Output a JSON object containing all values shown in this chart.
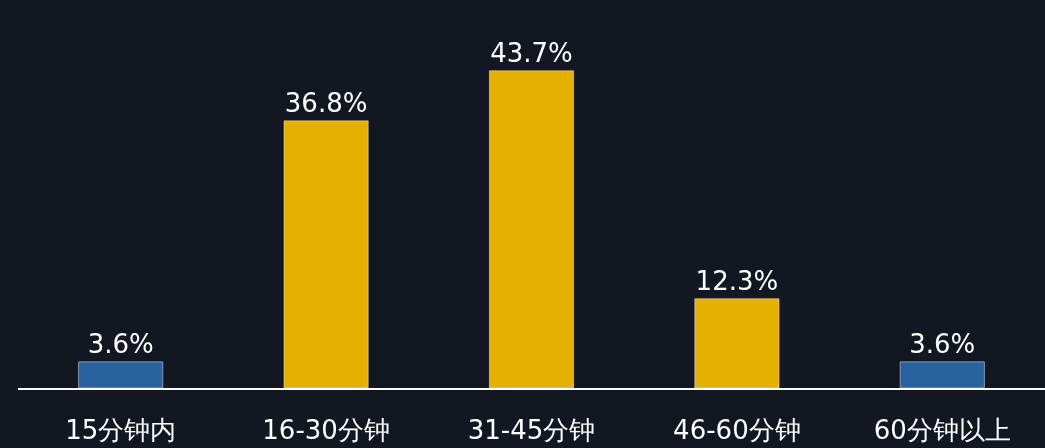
{
  "chart_data": {
    "type": "bar",
    "categories": [
      "15分钟内",
      "16-30分钟",
      "31-45分钟",
      "46-60分钟",
      "60分钟以上"
    ],
    "values": [
      3.6,
      36.8,
      43.7,
      12.3,
      3.6
    ],
    "colors": [
      "#2a62a0",
      "#e6b000",
      "#e6b000",
      "#e6b000",
      "#2a62a0"
    ],
    "value_labels": [
      "3.6%",
      "36.8%",
      "43.7%",
      "12.3%",
      "3.6%"
    ],
    "grid": false,
    "legend": false
  }
}
